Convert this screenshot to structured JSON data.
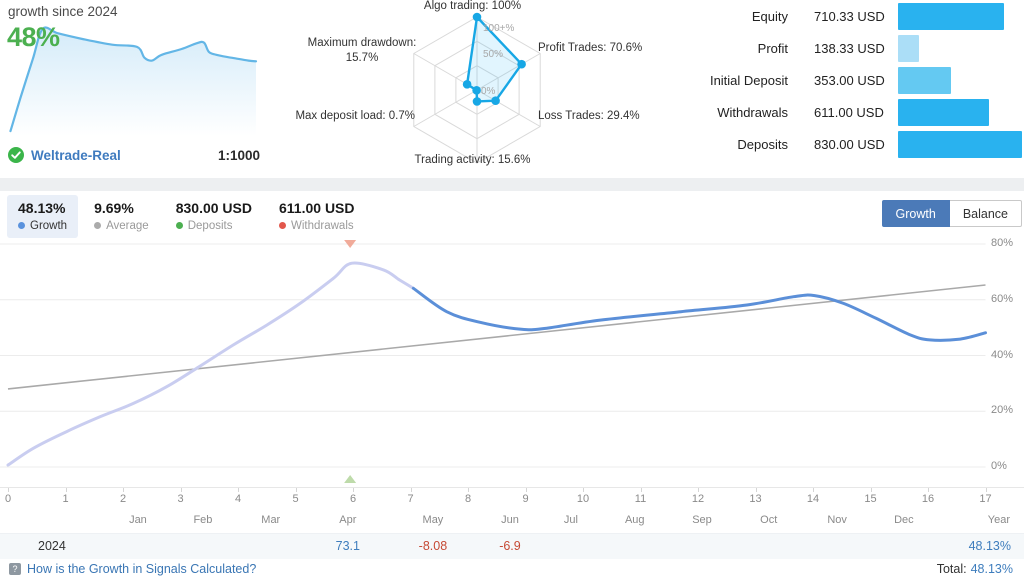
{
  "header": {
    "growth_since_label": "growth since 2024",
    "growth_value": "48%",
    "broker": {
      "name": "Weltrade-Real",
      "leverage": "1:1000"
    },
    "balance_rows": [
      {
        "label": "Equity",
        "value": "710.33 USD",
        "amount": 710.33,
        "color": "#29b2ef"
      },
      {
        "label": "Profit",
        "value": "138.33 USD",
        "amount": 138.33,
        "color": "#abdef7"
      },
      {
        "label": "Initial Deposit",
        "value": "353.00 USD",
        "amount": 353.0,
        "color": "#64c9f2"
      },
      {
        "label": "Withdrawals",
        "value": "611.00 USD",
        "amount": 611.0,
        "color": "#29b2ef"
      },
      {
        "label": "Deposits",
        "value": "830.00 USD",
        "amount": 830.0,
        "color": "#29b2ef"
      }
    ],
    "balance_max": 830
  },
  "stats": [
    {
      "value": "48.13%",
      "label": "Growth",
      "dot": "#5a92dd",
      "selected": true
    },
    {
      "value": "9.69%",
      "label": "Average",
      "dot": "#ababab",
      "selected": false
    },
    {
      "value": "830.00 USD",
      "label": "Deposits",
      "dot": "#4caf50",
      "selected": false
    },
    {
      "value": "611.00 USD",
      "label": "Withdrawals",
      "dot": "#e2574c",
      "selected": false
    }
  ],
  "toolbar": {
    "growth_label": "Growth",
    "balance_label": "Balance"
  },
  "table": {
    "year": "2024",
    "cells": [
      {
        "month": "Apr",
        "value": "73.1",
        "negative": false
      },
      {
        "month": "May",
        "value": "-8.08",
        "negative": true
      },
      {
        "month": "Jun",
        "value": "-6.9",
        "negative": true
      }
    ],
    "total": "48.13%"
  },
  "footer": {
    "link_text": "How is the Growth in Signals Calculated?",
    "total_label": "Total:",
    "total_value": "48.13%"
  },
  "chart_data": [
    {
      "name": "growth_sparkline",
      "type": "line",
      "title": "growth since 2024",
      "ylim": [
        0,
        80
      ],
      "grid": false,
      "points": [
        [
          0.01,
          2
        ],
        [
          0.05,
          25
        ],
        [
          0.1,
          52
        ],
        [
          0.14,
          73
        ],
        [
          0.2,
          70
        ],
        [
          0.3,
          66
        ],
        [
          0.42,
          62
        ],
        [
          0.52,
          60.5
        ],
        [
          0.55,
          53
        ],
        [
          0.58,
          51
        ],
        [
          0.62,
          55
        ],
        [
          0.7,
          59
        ],
        [
          0.76,
          63
        ],
        [
          0.79,
          63.5
        ],
        [
          0.81,
          57
        ],
        [
          0.84,
          55
        ],
        [
          0.9,
          53
        ],
        [
          0.97,
          51
        ],
        [
          1.0,
          50.5
        ]
      ],
      "line_color": "#63b6e6"
    },
    {
      "name": "signal_radar",
      "type": "radar",
      "max": 100,
      "axes": [
        {
          "label": "Algo trading: 100%",
          "value": 100
        },
        {
          "label": "Profit Trades: 70.6%",
          "value": 70.6
        },
        {
          "label": "Loss Trades: 29.4%",
          "value": 29.4
        },
        {
          "label": "Trading activity: 15.6%",
          "value": 15.6
        },
        {
          "label": "Max deposit load: 0.7%",
          "value": 0.7
        },
        {
          "label": "Maximum drawdown: 15.7%",
          "value": 15.7
        }
      ],
      "ring_labels": [
        "100+%",
        "50%",
        "0%"
      ],
      "stroke": "#17a7e5",
      "fill": "rgba(41,182,246,0.14)",
      "grid_color": "#d9d9d9"
    },
    {
      "name": "balance_bars",
      "type": "bar",
      "orientation": "horizontal",
      "categories": [
        "Equity",
        "Profit",
        "Initial Deposit",
        "Withdrawals",
        "Deposits"
      ],
      "values": [
        710.33,
        138.33,
        353.0,
        611.0,
        830.0
      ],
      "unit": "USD",
      "xlim": [
        0,
        830
      ]
    },
    {
      "name": "growth_chart",
      "type": "line",
      "ylim": [
        0,
        80
      ],
      "yticks": [
        0,
        20,
        40,
        60,
        80
      ],
      "ytick_suffix": "%",
      "xticks": [
        0,
        1,
        2,
        3,
        4,
        5,
        6,
        7,
        8,
        9,
        10,
        11,
        12,
        13,
        14,
        15,
        16,
        17
      ],
      "months": [
        "Jan",
        "Feb",
        "Mar",
        "Apr",
        "May",
        "Jun",
        "Jul",
        "Aug",
        "Sep",
        "Oct",
        "Nov",
        "Dec"
      ],
      "month_x_ticks": [
        2.26,
        3.39,
        4.57,
        5.91,
        7.39,
        8.73,
        9.79,
        10.9,
        12.07,
        13.23,
        14.42,
        15.58
      ],
      "year_axis_label": "Year",
      "legend": "none",
      "grid": true,
      "split_t": 7.05,
      "series": [
        {
          "name": "growth",
          "color": "#5b8fd8",
          "color_before_split": "#c9cdf0",
          "points": [
            [
              0,
              0.7
            ],
            [
              0.44,
              6.7
            ],
            [
              1.02,
              12.7
            ],
            [
              1.6,
              18
            ],
            [
              2.18,
              22.8
            ],
            [
              2.76,
              28.8
            ],
            [
              3.28,
              35.4
            ],
            [
              3.92,
              43.8
            ],
            [
              4.5,
              50.9
            ],
            [
              5.08,
              58.7
            ],
            [
              5.66,
              67.7
            ],
            [
              5.98,
              73.1
            ],
            [
              6.53,
              70.7
            ],
            [
              6.81,
              67.1
            ],
            [
              7.05,
              64.1
            ],
            [
              7.63,
              55.7
            ],
            [
              8.21,
              51.9
            ],
            [
              8.93,
              49.4
            ],
            [
              9.37,
              49.8
            ],
            [
              10.3,
              52.7
            ],
            [
              11.7,
              55.7
            ],
            [
              12.85,
              58.1
            ],
            [
              13.66,
              61.1
            ],
            [
              14.03,
              61.5
            ],
            [
              14.53,
              58.7
            ],
            [
              15.1,
              53.3
            ],
            [
              15.69,
              47.4
            ],
            [
              16.03,
              45.6
            ],
            [
              16.56,
              45.9
            ],
            [
              17,
              48.13
            ]
          ]
        },
        {
          "name": "trend",
          "color": "#a9a9a9",
          "points": [
            [
              0,
              28
            ],
            [
              17,
              65.3
            ]
          ]
        }
      ],
      "markers": [
        {
          "t": 5.95,
          "position": "top",
          "shape": "triangle-down",
          "color": "#f0a28f"
        },
        {
          "t": 5.95,
          "position": "bottom",
          "shape": "triangle-up",
          "color": "#b7d7a1"
        }
      ]
    }
  ]
}
